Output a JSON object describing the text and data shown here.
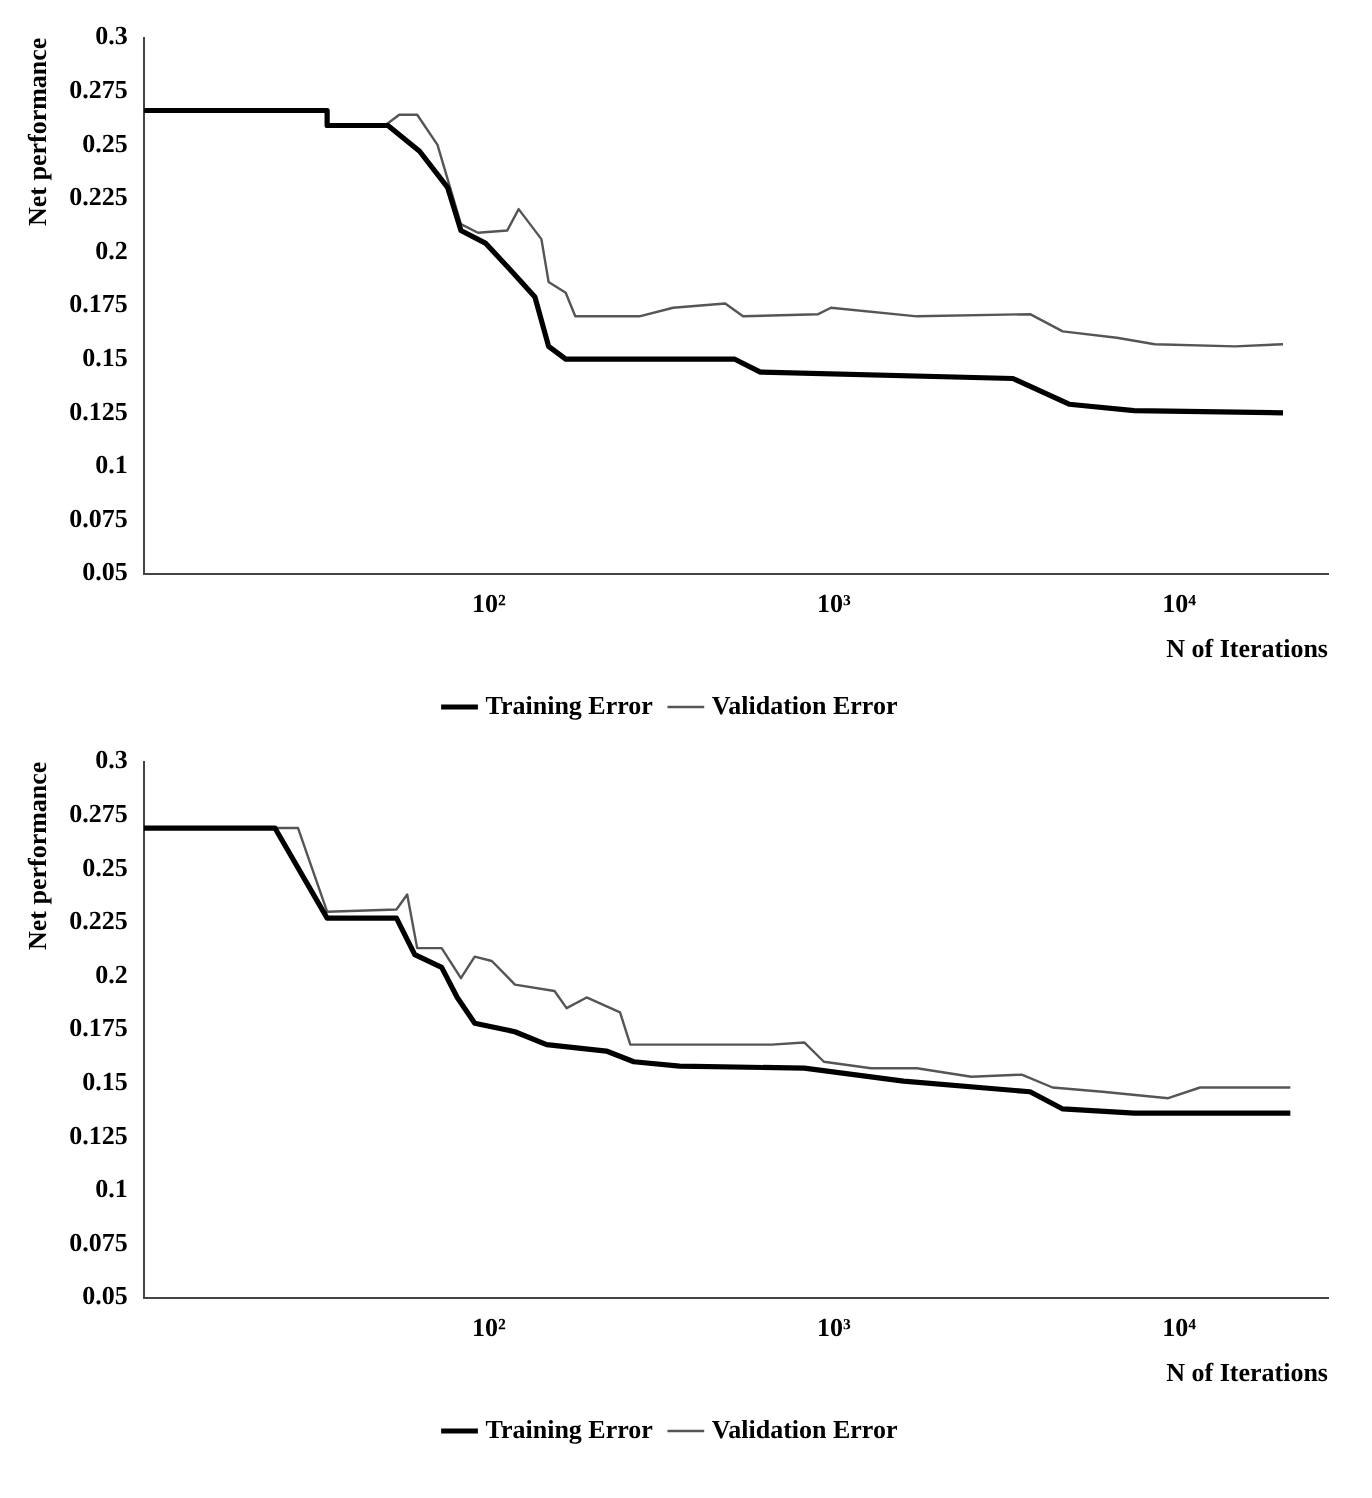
{
  "chart_data": [
    {
      "type": "line",
      "xlabel": "N of Iterations",
      "ylabel": "Net performance",
      "log": "x",
      "xlim": [
        10,
        27000
      ],
      "ylim": [
        0.05,
        0.3
      ],
      "xticks": [
        {
          "value": 100,
          "label": "10²"
        },
        {
          "value": 1000,
          "label": "10³"
        },
        {
          "value": 10000,
          "label": "10⁴"
        }
      ],
      "yticks": [
        0.05,
        0.075,
        0.1,
        0.125,
        0.15,
        0.175,
        0.2,
        0.225,
        0.25,
        0.275,
        0.3
      ],
      "grid": false,
      "legend": "bottom",
      "series": [
        {
          "name": "Training Error",
          "color": "#000000",
          "x": [
            10,
            34,
            34,
            51,
            63,
            76,
            83,
            98,
            118,
            136,
            149,
            167,
            516,
            612,
            3300,
            4800,
            7400,
            20000
          ],
          "values": [
            0.266,
            0.266,
            0.259,
            0.259,
            0.247,
            0.23,
            0.21,
            0.204,
            0.19,
            0.179,
            0.156,
            0.15,
            0.15,
            0.144,
            0.141,
            0.129,
            0.126,
            0.125
          ]
        },
        {
          "name": "Validation Error",
          "color": "#555555",
          "x": [
            10,
            34,
            34,
            50,
            55,
            62,
            71,
            83,
            93,
            113,
            122,
            142,
            149,
            167,
            178,
            273,
            342,
            484,
            545,
            900,
            980,
            1740,
            3700,
            4600,
            6600,
            8500,
            14500,
            20000
          ],
          "values": [
            0.266,
            0.266,
            0.259,
            0.259,
            0.264,
            0.264,
            0.25,
            0.213,
            0.209,
            0.21,
            0.22,
            0.206,
            0.186,
            0.181,
            0.17,
            0.17,
            0.174,
            0.176,
            0.17,
            0.171,
            0.174,
            0.17,
            0.171,
            0.163,
            0.16,
            0.157,
            0.156,
            0.157
          ]
        }
      ]
    },
    {
      "type": "line",
      "xlabel": "N of Iterations",
      "ylabel": "Net performance",
      "log": "x",
      "xlim": [
        10,
        27000
      ],
      "ylim": [
        0.05,
        0.3
      ],
      "xticks": [
        {
          "value": 100,
          "label": "10²"
        },
        {
          "value": 1000,
          "label": "10³"
        },
        {
          "value": 10000,
          "label": "10⁴"
        }
      ],
      "yticks": [
        0.05,
        0.075,
        0.1,
        0.125,
        0.15,
        0.175,
        0.2,
        0.225,
        0.25,
        0.275,
        0.3
      ],
      "grid": false,
      "legend": "bottom",
      "series": [
        {
          "name": "Training Error",
          "color": "#000000",
          "x": [
            10,
            24,
            34,
            54,
            61,
            73,
            81,
            91,
            119,
            147,
            219,
            263,
            357,
            820,
            1590,
            3700,
            4600,
            7400,
            21000
          ],
          "values": [
            0.269,
            0.269,
            0.227,
            0.227,
            0.21,
            0.204,
            0.19,
            0.178,
            0.174,
            0.168,
            0.165,
            0.16,
            0.158,
            0.157,
            0.151,
            0.146,
            0.138,
            0.136,
            0.136
          ]
        },
        {
          "name": "Validation Error",
          "color": "#555555",
          "x": [
            10,
            28,
            34,
            54,
            58,
            62,
            73,
            83,
            91,
            102,
            119,
            155,
            168,
            192,
            240,
            257,
            357,
            660,
            820,
            935,
            1280,
            1740,
            2500,
            3500,
            4300,
            6000,
            9300,
            11500,
            21000
          ],
          "values": [
            0.269,
            0.269,
            0.23,
            0.231,
            0.238,
            0.213,
            0.213,
            0.199,
            0.209,
            0.207,
            0.196,
            0.193,
            0.185,
            0.19,
            0.183,
            0.168,
            0.168,
            0.168,
            0.169,
            0.16,
            0.157,
            0.157,
            0.153,
            0.154,
            0.148,
            0.146,
            0.143,
            0.148,
            0.148
          ]
        }
      ]
    }
  ]
}
